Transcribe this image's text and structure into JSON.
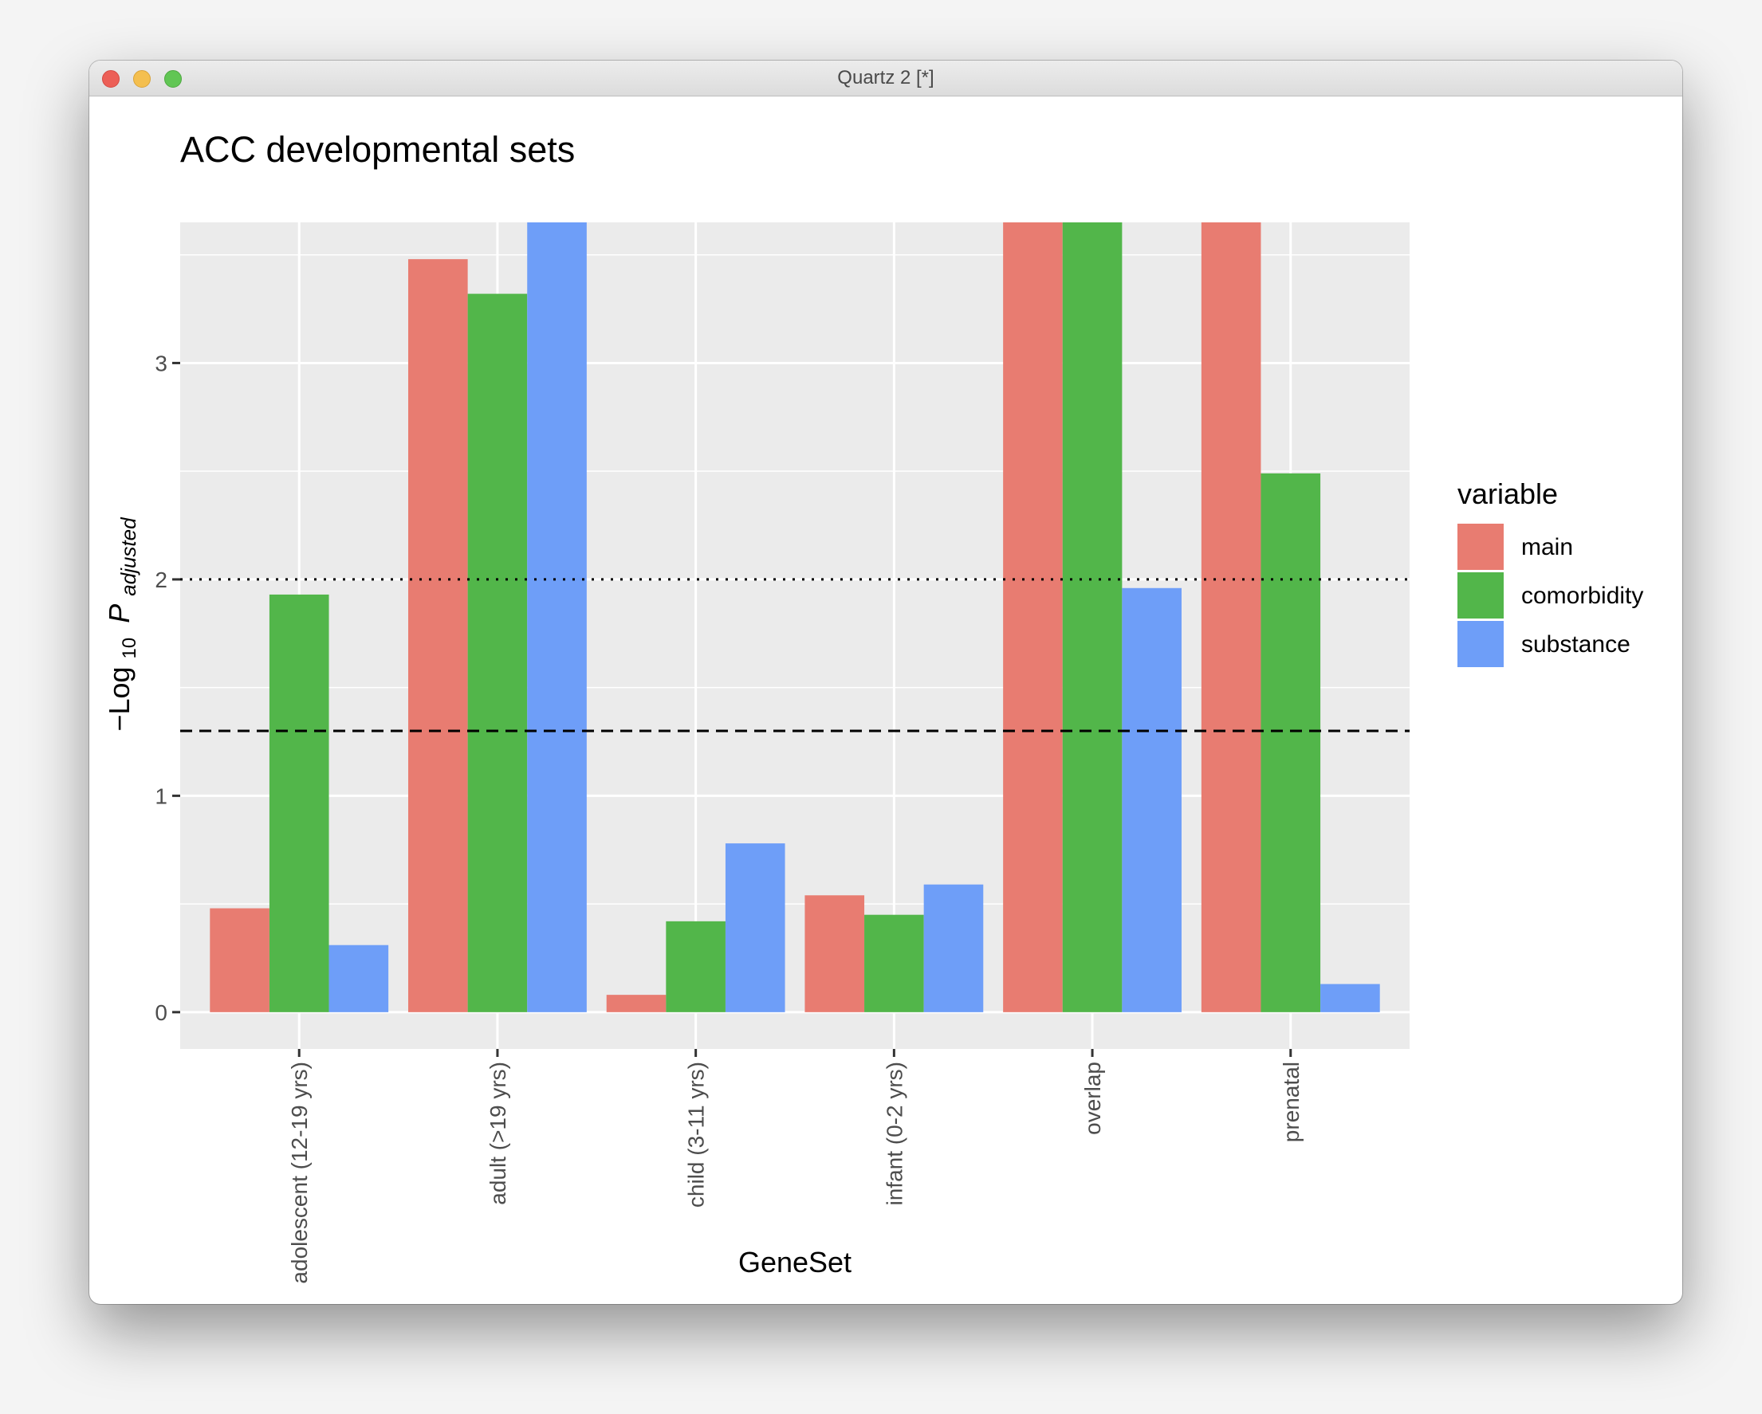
{
  "window": {
    "title": "Quartz 2 [*]"
  },
  "colors": {
    "main": "#e87c71",
    "comorbidity": "#52b64a",
    "substance": "#6e9ef8",
    "panel": "#ebebeb",
    "grid": "#ffffff"
  },
  "chart_data": {
    "type": "bar",
    "title": "ACC developmental sets",
    "xlabel": "GeneSet",
    "ylabel": "−Log10 P adjusted",
    "ylabel_parts": {
      "prefix": "−Log",
      "sub": "10",
      "var": "P",
      "var_sub": "adjusted"
    },
    "categories": [
      "adolescent (12-19 yrs)",
      "adult (>19 yrs)",
      "child (3-11 yrs)",
      "infant (0-2 yrs)",
      "overlap",
      "prenatal"
    ],
    "series": [
      {
        "name": "main",
        "color": "#e87c71",
        "values": [
          0.48,
          3.48,
          0.08,
          0.54,
          4.0,
          4.0
        ]
      },
      {
        "name": "comorbidity",
        "color": "#52b64a",
        "values": [
          1.93,
          3.32,
          0.42,
          0.45,
          4.0,
          2.49
        ]
      },
      {
        "name": "substance",
        "color": "#6e9ef8",
        "values": [
          0.31,
          4.0,
          0.78,
          0.59,
          1.96,
          0.13
        ]
      }
    ],
    "ylim": [
      -0.17,
      3.65
    ],
    "yticks": [
      0,
      1,
      2,
      3
    ],
    "reference_lines": [
      {
        "y": 2,
        "style": "dotted"
      },
      {
        "y": 1.3,
        "style": "dashed"
      }
    ],
    "legend": {
      "title": "variable",
      "placement": "right",
      "entries": [
        "main",
        "comorbidity",
        "substance"
      ]
    },
    "grid": true
  }
}
